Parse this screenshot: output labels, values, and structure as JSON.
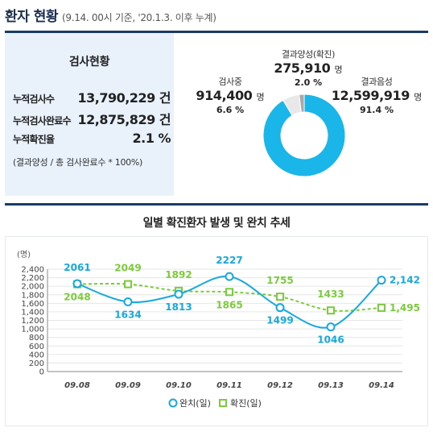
{
  "header": {
    "title": "환자 현황",
    "subtitle": "(9.14. 00시 기준, '20.1.3. 이후 누계)"
  },
  "stats": {
    "title": "검사현황",
    "rows": [
      {
        "label": "누적검사수",
        "value": "13,790,229 건"
      },
      {
        "label": "누적검사완료수",
        "value": "12,875,829 건"
      },
      {
        "label": "누적확진율",
        "value": "2.1 %"
      }
    ],
    "note": "(결과양성 / 총 검사완료수 * 100%)"
  },
  "pie": {
    "positive": {
      "name": "결과양성(확진)",
      "value": "275,910",
      "unit": "명",
      "pct": "2.0 %"
    },
    "testing": {
      "name": "검사중",
      "value": "914,400",
      "unit": "명",
      "pct": "6.6 %"
    },
    "negative": {
      "name": "결과음성",
      "value": "12,599,919",
      "unit": "명",
      "pct": "91.4 %"
    },
    "colors": {
      "negative": "#1ab6ea",
      "testing": "#e8e8e8",
      "positive": "#a9a9a9"
    }
  },
  "chart_data": {
    "type": "line",
    "title": "일별 확진환자 발생 및 완치 추세",
    "ylabel": "(명)",
    "categories": [
      "09.08",
      "09.09",
      "09.10",
      "09.11",
      "09.12",
      "09.13",
      "09.14"
    ],
    "ylim": [
      0,
      2400
    ],
    "yticks": [
      "0",
      "200",
      "400",
      "600",
      "800",
      "1,000",
      "1,200",
      "1,400",
      "1,600",
      "1,800",
      "2,000",
      "2,200",
      "2,400"
    ],
    "grid": true,
    "legend": "bottom",
    "series": [
      {
        "name": "완치(일)",
        "values": [
          2061,
          1634,
          1813,
          2227,
          1499,
          1046,
          2142
        ],
        "labels": [
          "2061",
          "1634",
          "1813",
          "2227",
          "1499",
          "1046",
          "2,142"
        ],
        "color": "#16a9dd",
        "style": "solid",
        "marker": "circle"
      },
      {
        "name": "확진(일)",
        "values": [
          2048,
          2049,
          1892,
          1865,
          1755,
          1433,
          1495
        ],
        "labels": [
          "2048",
          "2049",
          "1892",
          "1865",
          "1755",
          "1433",
          "1,495"
        ],
        "color": "#7acc3a",
        "style": "dashed",
        "marker": "square"
      }
    ]
  }
}
